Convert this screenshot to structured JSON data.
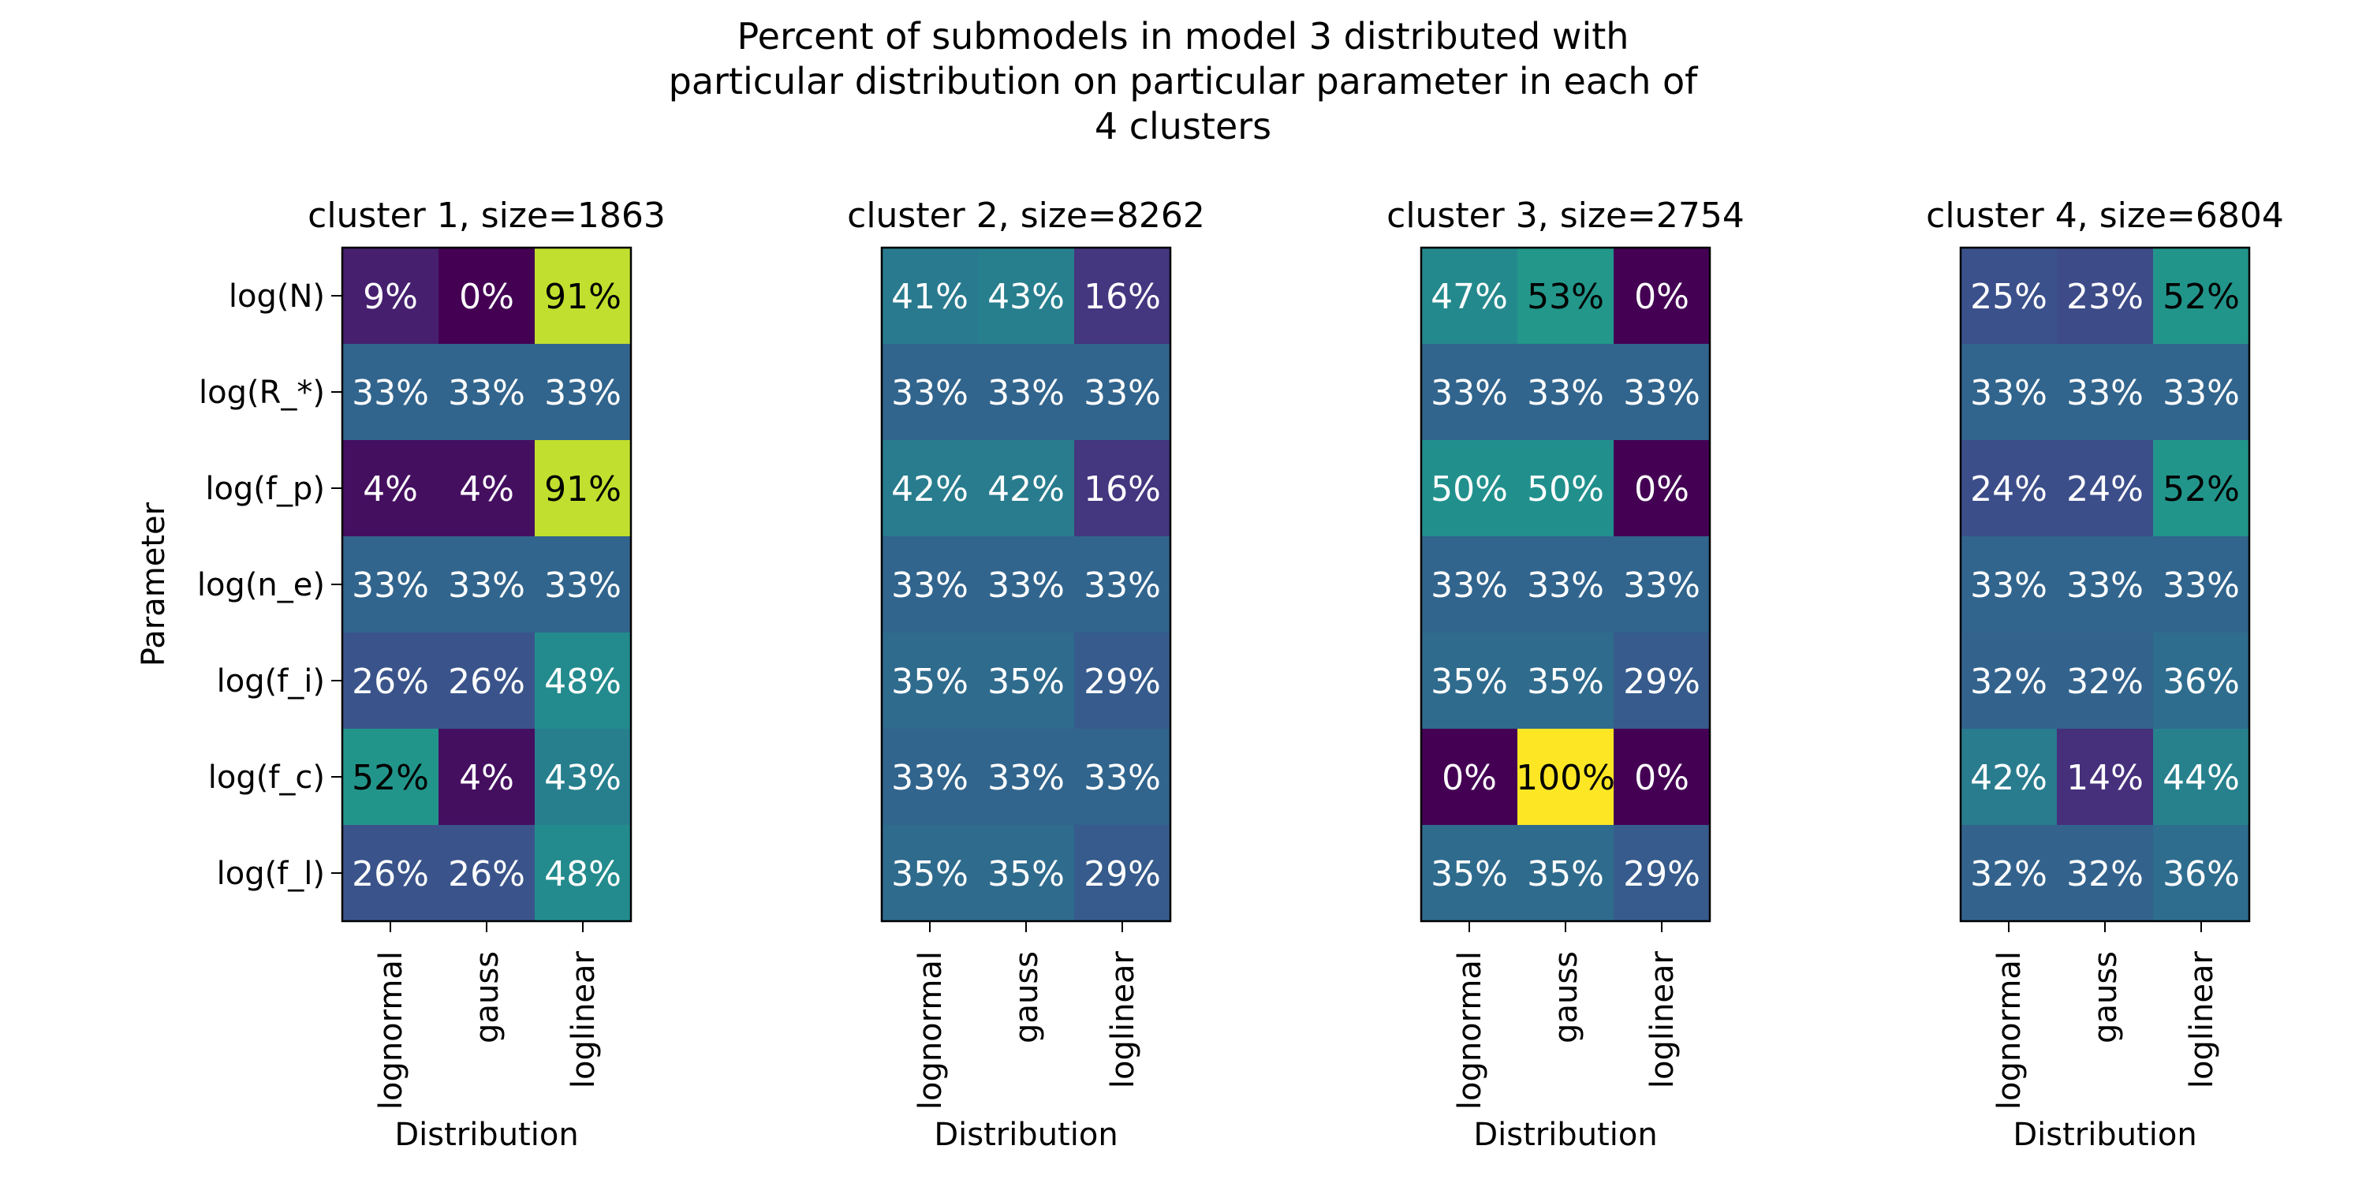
{
  "title_lines": [
    "Percent of submodels in model 3 distributed with",
    "particular distribution on particular parameter in each of",
    "4 clusters"
  ],
  "chart_data": {
    "type": "heatmap",
    "ylabel": "Parameter",
    "xlabel": "Distribution",
    "rows": [
      "log(N)",
      "log(R_*)",
      "log(f_p)",
      "log(n_e)",
      "log(f_i)",
      "log(f_c)",
      "log(f_l)"
    ],
    "columns": [
      "lognormal",
      "gauss",
      "loglinear"
    ],
    "colormap": "viridis",
    "value_range": [
      0,
      100
    ],
    "panels": [
      {
        "title": "cluster 1, size=1863",
        "values": [
          [
            9,
            0,
            91
          ],
          [
            33,
            33,
            33
          ],
          [
            4,
            4,
            91
          ],
          [
            33,
            33,
            33
          ],
          [
            26,
            26,
            48
          ],
          [
            52,
            4,
            43
          ],
          [
            26,
            26,
            48
          ]
        ]
      },
      {
        "title": "cluster 2, size=8262",
        "values": [
          [
            41,
            43,
            16
          ],
          [
            33,
            33,
            33
          ],
          [
            42,
            42,
            16
          ],
          [
            33,
            33,
            33
          ],
          [
            35,
            35,
            29
          ],
          [
            33,
            33,
            33
          ],
          [
            35,
            35,
            29
          ]
        ]
      },
      {
        "title": "cluster 3, size=2754",
        "values": [
          [
            47,
            53,
            0
          ],
          [
            33,
            33,
            33
          ],
          [
            50,
            50,
            0
          ],
          [
            33,
            33,
            33
          ],
          [
            35,
            35,
            29
          ],
          [
            0,
            100,
            0
          ],
          [
            35,
            35,
            29
          ]
        ]
      },
      {
        "title": "cluster 4, size=6804",
        "values": [
          [
            25,
            23,
            52
          ],
          [
            33,
            33,
            33
          ],
          [
            24,
            24,
            52
          ],
          [
            33,
            33,
            33
          ],
          [
            32,
            32,
            36
          ],
          [
            42,
            14,
            44
          ],
          [
            32,
            32,
            36
          ]
        ]
      }
    ]
  }
}
